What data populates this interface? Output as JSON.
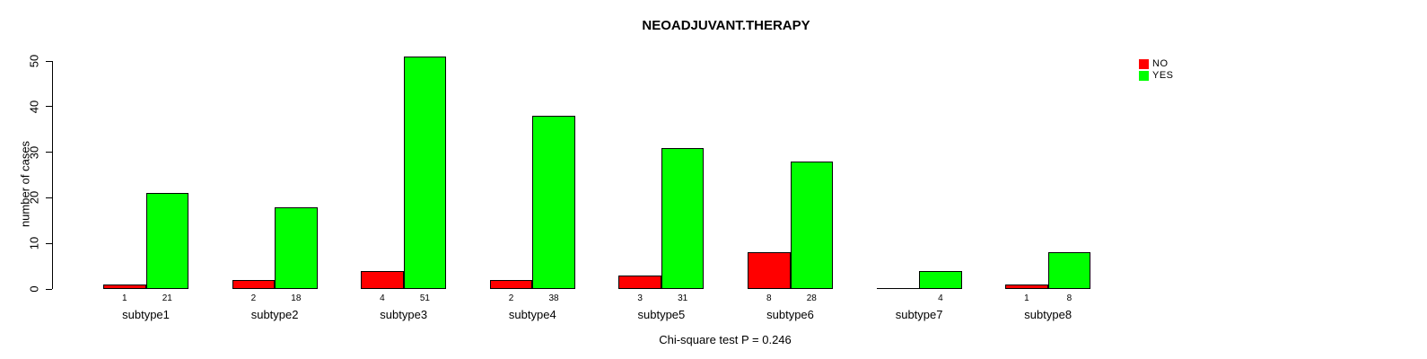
{
  "title": "NEOADJUVANT.THERAPY",
  "y_axis": {
    "label": "number of cases",
    "ticks": [
      0,
      10,
      20,
      30,
      40,
      50
    ]
  },
  "legend": {
    "items": [
      {
        "label": "NO",
        "color": "#ff0000"
      },
      {
        "label": "YES",
        "color": "#00ff00"
      }
    ]
  },
  "caption": "Chi-square test P = 0.246",
  "chart_data": {
    "type": "bar",
    "title": "NEOADJUVANT.THERAPY",
    "categories": [
      "subtype1",
      "subtype2",
      "subtype3",
      "subtype4",
      "subtype5",
      "subtype6",
      "subtype7",
      "subtype8"
    ],
    "series": [
      {
        "name": "NO",
        "color": "#ff0000",
        "values": [
          1,
          2,
          4,
          2,
          3,
          8,
          0,
          1
        ]
      },
      {
        "name": "YES",
        "color": "#00ff00",
        "values": [
          21,
          18,
          51,
          38,
          31,
          28,
          4,
          8
        ]
      }
    ],
    "xlabel": "",
    "ylabel": "number of cases",
    "ylim": [
      0,
      50
    ],
    "yticks": [
      0,
      10,
      20,
      30,
      40,
      50
    ],
    "bar_value_labels": true,
    "zero_bars_drawn_as_baseline_segment": true,
    "grid": false,
    "legend_position": "top-right",
    "annotation": "Chi-square test P = 0.246"
  }
}
